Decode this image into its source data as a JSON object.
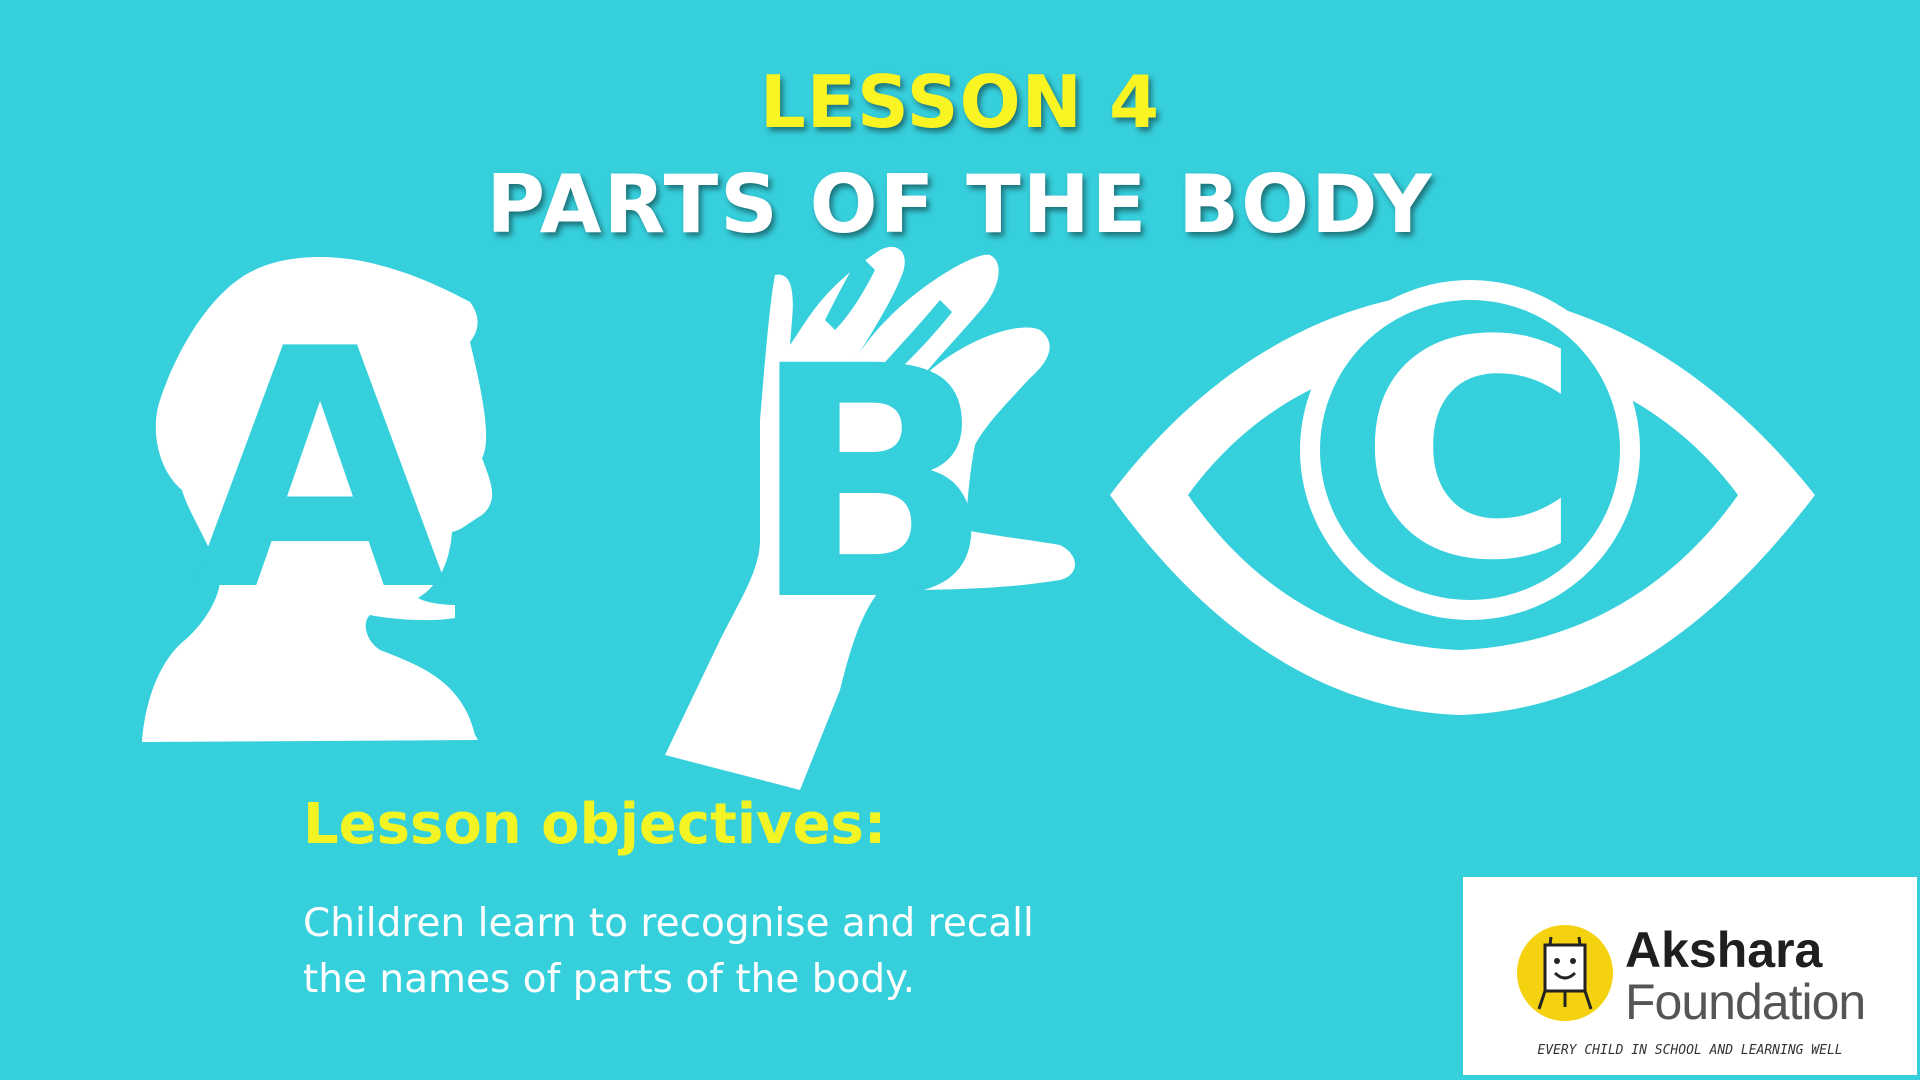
{
  "slide": {
    "title_line1": "LESSON 4",
    "title_line2": "PARTS OF THE BODY",
    "letters": [
      "A",
      "B",
      "C"
    ],
    "objectives_heading": "Lesson objectives:",
    "objectives_line1": "Children learn to recognise and recall",
    "objectives_line2": "the names of parts of the body."
  },
  "logo": {
    "name_line1": "Akshara",
    "name_line2": "Foundation",
    "tagline": "EVERY CHILD IN SCHOOL AND LEARNING WELL"
  },
  "illustrations": [
    "head-silhouette",
    "hand-silhouette",
    "eye-icon"
  ],
  "colors": {
    "background": "#36cfdc",
    "title_yellow": "#fbf423",
    "heading_yellow": "#f2f523",
    "white": "#ffffff",
    "logo_yellow": "#f5d20f"
  }
}
